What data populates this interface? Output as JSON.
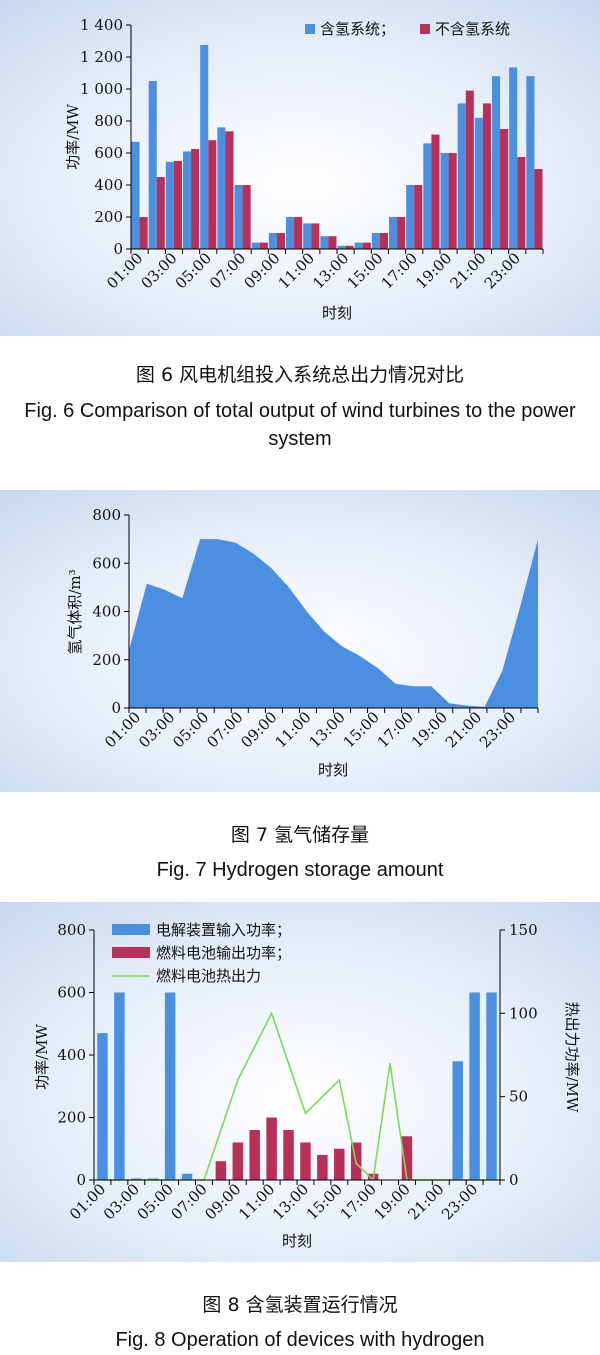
{
  "hours": [
    "01:00",
    "02:00",
    "03:00",
    "04:00",
    "05:00",
    "06:00",
    "07:00",
    "08:00",
    "09:00",
    "10:00",
    "11:00",
    "12:00",
    "13:00",
    "14:00",
    "15:00",
    "16:00",
    "17:00",
    "18:00",
    "19:00",
    "20:00",
    "21:00",
    "22:00",
    "23:00",
    "24:00"
  ],
  "tick_labels": [
    "01:00",
    "03:00",
    "05:00",
    "07:00",
    "09:00",
    "11:00",
    "13:00",
    "15:00",
    "17:00",
    "19:00",
    "21:00",
    "23:00"
  ],
  "colors": {
    "blue": "#4a8fe0",
    "red": "#b8305a",
    "green": "#7ed957",
    "bg": "#c6d7ef",
    "area": "#4a8fe0"
  },
  "chart_data": [
    {
      "type": "bar",
      "xlabel": "时刻",
      "ylabel": "功率/MW",
      "ylim": [
        0,
        1400
      ],
      "yticks": [
        "0",
        "200",
        "400",
        "600",
        "800",
        "1 000",
        "1 200",
        "1 400"
      ],
      "legend_position": "top-right",
      "series": [
        {
          "name": "含氢系统；",
          "values": [
            670,
            1050,
            545,
            610,
            1275,
            760,
            400,
            40,
            100,
            200,
            160,
            80,
            20,
            40,
            100,
            200,
            400,
            660,
            600,
            910,
            820,
            1080,
            1135,
            1080
          ]
        },
        {
          "name": "不含氢系统",
          "values": [
            200,
            450,
            550,
            625,
            680,
            735,
            400,
            40,
            100,
            200,
            160,
            80,
            20,
            40,
            100,
            200,
            400,
            715,
            600,
            990,
            910,
            750,
            575,
            500
          ]
        }
      ]
    },
    {
      "type": "area",
      "xlabel": "时刻",
      "ylabel": "氢气体积/m³",
      "ylim": [
        0,
        800
      ],
      "yticks": [
        "0",
        "200",
        "400",
        "600",
        "800"
      ],
      "series": [
        {
          "values": [
            240,
            515,
            490,
            455,
            700,
            700,
            685,
            640,
            580,
            500,
            400,
            315,
            255,
            215,
            165,
            100,
            90,
            90,
            20,
            10,
            5,
            155,
            420,
            700
          ]
        }
      ]
    },
    {
      "type": "bar",
      "xlabel": "时刻",
      "ylabel": "功率/MW",
      "ylabel_right": "热出力功率/MW",
      "ylim": [
        0,
        800
      ],
      "ylim_right": [
        0,
        150
      ],
      "yticks": [
        "0",
        "200",
        "400",
        "600",
        "800"
      ],
      "yticks_right": [
        "0",
        "50",
        "100",
        "150"
      ],
      "legend_position": "top-left",
      "series": [
        {
          "name": "电解装置输入功率；",
          "kind": "bar",
          "axis": "left",
          "values": [
            470,
            600,
            5,
            5,
            600,
            20,
            0,
            0,
            0,
            0,
            0,
            0,
            0,
            0,
            0,
            0,
            0,
            0,
            0,
            0,
            0,
            380,
            600,
            600
          ]
        },
        {
          "name": "燃料电池输出功率；",
          "kind": "bar",
          "axis": "left",
          "values": [
            0,
            0,
            0,
            0,
            0,
            0,
            0,
            60,
            120,
            160,
            200,
            160,
            120,
            80,
            100,
            120,
            20,
            0,
            140,
            0,
            0,
            0,
            0,
            0
          ]
        },
        {
          "name": "燃料电池热出力",
          "kind": "line",
          "axis": "right",
          "values": [
            0,
            0,
            0,
            0,
            0,
            0,
            0,
            30,
            60,
            80,
            100,
            70,
            40,
            50,
            60,
            10,
            0,
            70,
            0,
            0,
            0,
            0,
            0,
            0
          ]
        }
      ]
    }
  ],
  "captions": {
    "fig6_cn": "图 6   风电机组投入系统总出力情况对比",
    "fig6_en": "Fig. 6    Comparison of total output of wind turbines to the power system",
    "fig7_cn": "图 7   氢气储存量",
    "fig7_en": "Fig. 7    Hydrogen storage amount",
    "fig8_cn": "图 8   含氢装置运行情况",
    "fig8_en": "Fig. 8    Operation of devices with hydrogen"
  }
}
